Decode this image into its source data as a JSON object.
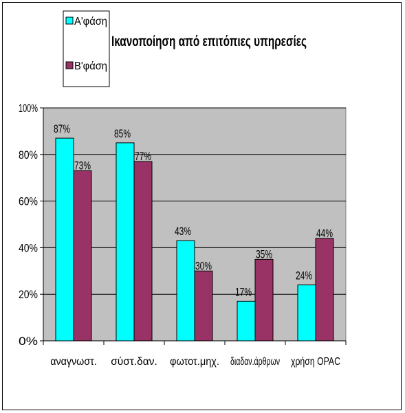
{
  "chart_data": {
    "type": "bar",
    "title": "Ικανοποίηση από επιτόπιες υπηρεσίες",
    "categories": [
      "αναγνωστ.",
      "σύστ.δαν.",
      "φωτοτ.μηχ.",
      "διαδαν.άρθρων",
      "χρήση OPAC"
    ],
    "series": [
      {
        "name": "Α'φάση",
        "values": [
          87,
          85,
          43,
          17,
          24
        ],
        "labels": [
          "87%",
          "85%",
          "43%",
          "17%",
          "24%"
        ],
        "color": "#00ffff"
      },
      {
        "name": "Β'φάση",
        "values": [
          73,
          77,
          30,
          35,
          44
        ],
        "labels": [
          "73%",
          "77%",
          "30%",
          "35%",
          "44%"
        ],
        "color": "#993366"
      }
    ],
    "ylim": [
      0,
      100
    ],
    "yticks": [
      "0%",
      "20%",
      "40%",
      "60%",
      "80%",
      "100%"
    ],
    "plot_background": "#c0c0c0",
    "grid": true,
    "legend_position": "top-left"
  }
}
